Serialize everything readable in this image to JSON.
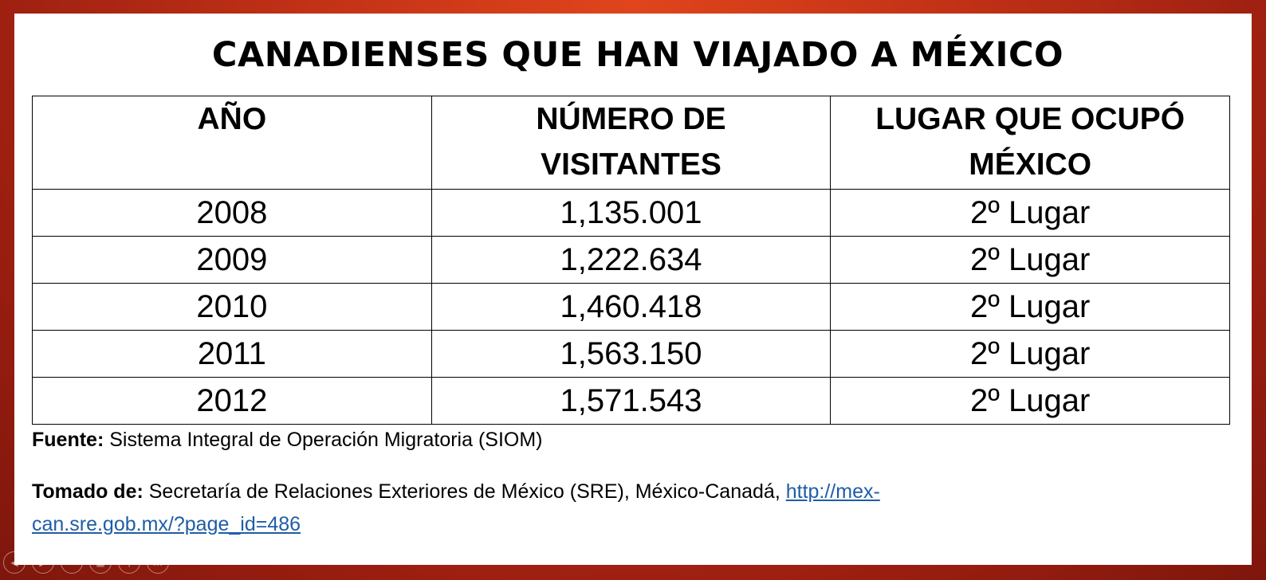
{
  "slide": {
    "title": "CANADIENSES QUE HAN VIAJADO A MÉXICO",
    "table": {
      "headers": [
        "AÑO",
        "NÚMERO DE VISITANTES",
        "LUGAR QUE OCUPÓ MÉXICO"
      ],
      "header_lines": [
        [
          "AÑO"
        ],
        [
          "NÚMERO DE",
          "VISITANTES"
        ],
        [
          "LUGAR QUE OCUPÓ",
          "MÉXICO"
        ]
      ],
      "rows": [
        [
          "2008",
          "1,135.001",
          "2º Lugar"
        ],
        [
          "2009",
          "1,222.634",
          "2º Lugar"
        ],
        [
          "2010",
          "1,460.418",
          "2º Lugar"
        ],
        [
          "2011",
          "1,563.150",
          "2º Lugar"
        ],
        [
          "2012",
          "1,571.543",
          "2º Lugar"
        ]
      ]
    },
    "source": {
      "label": "Fuente:",
      "text": " Sistema Integral de Operación Migratoria (SIOM)"
    },
    "taken_from": {
      "label": "Tomado de:",
      "text": " Secretaría de Relaciones Exteriores de México (SRE), México-Canadá, ",
      "link_line1": "http://mex-",
      "link_line2": "can.sre.gob.mx/?page_id=486"
    }
  },
  "nav_controls": {
    "icons": [
      "previous-icon",
      "next-icon",
      "pen-icon",
      "slides-icon",
      "zoom-icon",
      "more-icon"
    ],
    "glyphs": [
      "◀",
      "▶",
      "✎",
      "▦",
      "⚲",
      "…"
    ]
  },
  "colors": {
    "frame": "#c23216",
    "link": "#1f5da6"
  }
}
